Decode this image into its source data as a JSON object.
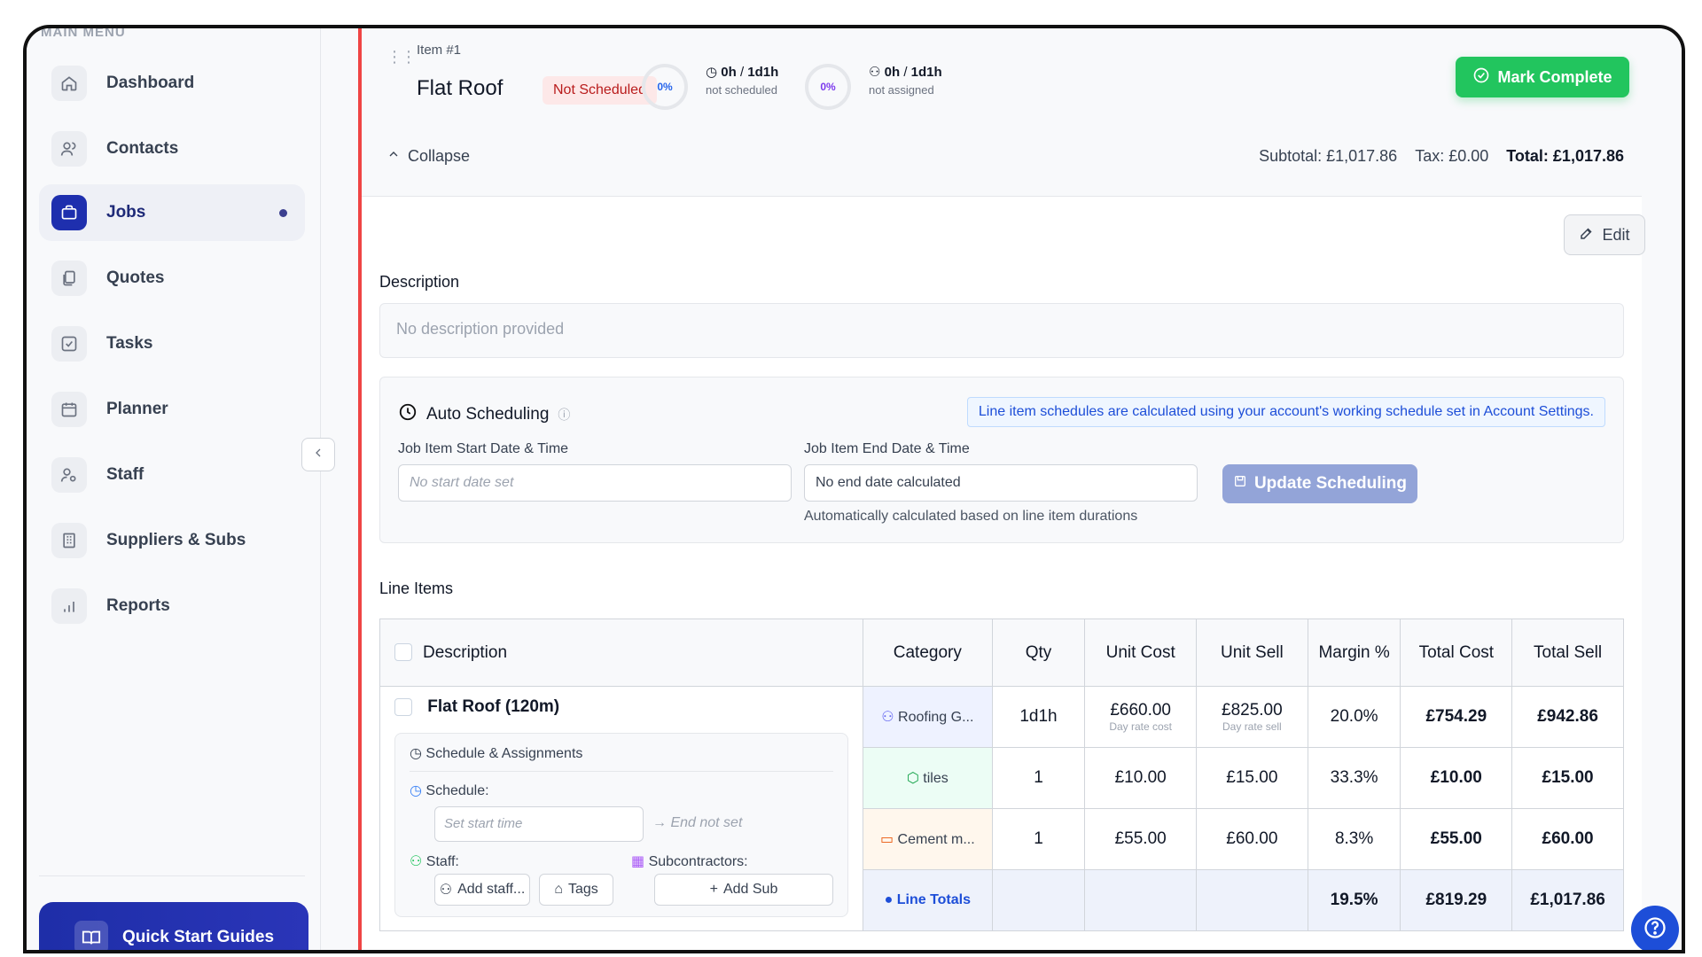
{
  "sidebar": {
    "section_label": "MAIN MENU",
    "items": [
      {
        "label": "Dashboard",
        "icon": "home-icon"
      },
      {
        "label": "Contacts",
        "icon": "users-icon"
      },
      {
        "label": "Jobs",
        "icon": "briefcase-icon",
        "active": true
      },
      {
        "label": "Quotes",
        "icon": "documents-icon"
      },
      {
        "label": "Tasks",
        "icon": "checkbox-icon"
      },
      {
        "label": "Planner",
        "icon": "calendar-icon"
      },
      {
        "label": "Staff",
        "icon": "user-gear-icon"
      },
      {
        "label": "Suppliers & Subs",
        "icon": "building-icon"
      },
      {
        "label": "Reports",
        "icon": "bar-chart-icon"
      }
    ],
    "quick_start": "Quick Start Guides"
  },
  "item": {
    "number": "Item #1",
    "title": "Flat Roof",
    "status": "Not Scheduled",
    "progress1": "0%",
    "time1_a": "0h",
    "time1_sep": "/",
    "time1_b": "1d1h",
    "time1_sub": "not scheduled",
    "progress2": "0%",
    "time2_a": "0h",
    "time2_sep": "/",
    "time2_b": "1d1h",
    "time2_sub": "not assigned",
    "mark_complete": "Mark Complete",
    "collapse": "Collapse",
    "subtotal": "Subtotal: £1,017.86",
    "tax": "Tax: £0.00",
    "total": "Total: £1,017.86",
    "edit": "Edit"
  },
  "description": {
    "title": "Description",
    "value": "No description provided"
  },
  "scheduling": {
    "title": "Auto Scheduling",
    "note": "Line item schedules are calculated using your account's working schedule set in Account Settings.",
    "start_label": "Job Item Start Date & Time",
    "start_placeholder": "No start date set",
    "end_label": "Job Item End Date & Time",
    "end_value": "No end date calculated",
    "update_button": "Update Scheduling",
    "help": "Automatically calculated based on line item durations"
  },
  "line_items": {
    "title": "Line Items",
    "headers": [
      "Description",
      "Category",
      "Qty",
      "Unit Cost",
      "Unit Sell",
      "Margin %",
      "Total Cost",
      "Total Sell"
    ],
    "rows": [
      {
        "category": "Roofing G...",
        "qty": "1d1h",
        "unit_cost": "£660.00",
        "unit_cost_note": "Day rate cost",
        "unit_sell": "£825.00",
        "unit_sell_note": "Day rate sell",
        "margin": "20.0%",
        "total_cost": "£754.29",
        "total_sell": "£942.86"
      },
      {
        "category": "tiles",
        "qty": "1",
        "unit_cost": "£10.00",
        "unit_sell": "£15.00",
        "margin": "33.3%",
        "total_cost": "£10.00",
        "total_sell": "£15.00"
      },
      {
        "category": "Cement m...",
        "qty": "1",
        "unit_cost": "£55.00",
        "unit_sell": "£60.00",
        "margin": "8.3%",
        "total_cost": "£55.00",
        "total_sell": "£60.00"
      }
    ],
    "totals": {
      "label": "Line Totals",
      "margin": "19.5%",
      "total_cost": "£819.29",
      "total_sell": "£1,017.86"
    },
    "first_item_title": "Flat Roof (120m)",
    "assign": {
      "title": "Schedule & Assignments",
      "schedule_label": "Schedule:",
      "start_placeholder": "Set start time",
      "end_text": "End not set",
      "staff_label": "Staff:",
      "add_staff": "Add staff...",
      "tags": "Tags",
      "subs_label": "Subcontractors:",
      "add_sub": "Add Sub"
    }
  },
  "colors": {
    "accent": "#1e2fae",
    "danger": "#ef4444",
    "success": "#22c55e"
  }
}
